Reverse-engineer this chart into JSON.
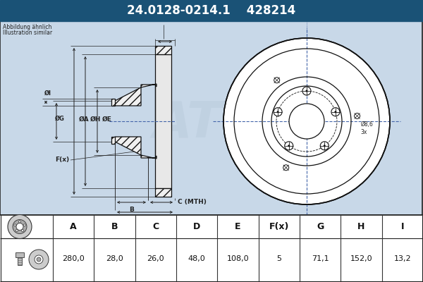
{
  "title_part": "24.0128-0214.1",
  "title_code": "428214",
  "header_bg": "#1a5276",
  "header_text_color": "#ffffff",
  "bg_color": "#c8d8e8",
  "drawing_bg": "#c8d8e8",
  "table_bg": "#ffffff",
  "note_line1": "Abbildung ähnlich",
  "note_line2": "Illustration similar",
  "table_headers": [
    "A",
    "B",
    "C",
    "D",
    "E",
    "F(x)",
    "G",
    "H",
    "I"
  ],
  "table_values": [
    "280,0",
    "28,0",
    "26,0",
    "48,0",
    "108,0",
    "5",
    "71,1",
    "152,0",
    "13,2"
  ],
  "border_color": "#333333",
  "line_color": "#222222",
  "dim_color": "#222222",
  "crosshair_color": "#4466aa",
  "hatch_color": "#555555"
}
